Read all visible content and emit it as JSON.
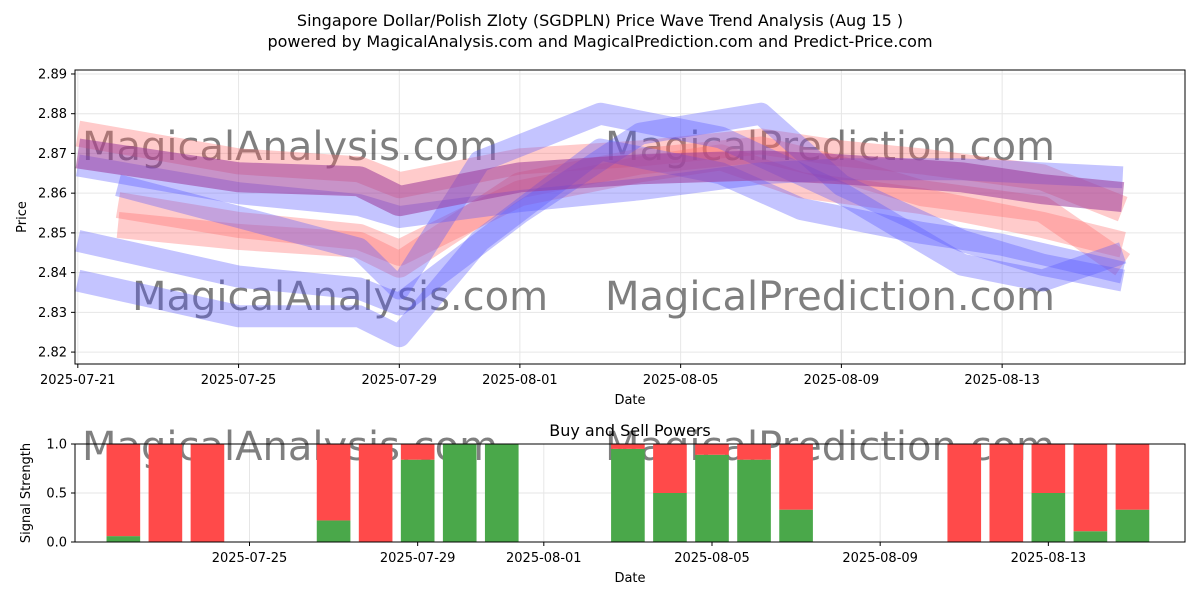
{
  "title_line1": "Singapore Dollar/Polish Zloty (SGDPLN) Price Wave Trend Analysis (Aug 15 )",
  "title_line2": "powered by MagicalAnalysis.com and MagicalPrediction.com and Predict-Price.com",
  "watermarks": {
    "top_left": "MagicalAnalysis.com",
    "top_right": "MagicalPrediction.com",
    "mid_left": "MagicalAnalysis.com",
    "mid_right": "MagicalPrediction.com",
    "bottom_left": "MagicalAnalysis.com",
    "bottom_right": "MagicalPrediction.com"
  },
  "colors": {
    "red_band": "#ff6b6b",
    "blue_band": "#5555ff",
    "purple_band": "#9b3a9b",
    "buy_bar": "#4aa84a",
    "sell_bar": "#ff4a4a"
  },
  "chart_data": [
    {
      "type": "area",
      "title": "",
      "xlabel": "Date",
      "ylabel": "Price",
      "x_ticks": [
        "2025-07-21",
        "2025-07-25",
        "2025-07-29",
        "2025-08-01",
        "2025-08-05",
        "2025-08-09",
        "2025-08-13"
      ],
      "y_ticks": [
        "2.82",
        "2.83",
        "2.84",
        "2.85",
        "2.86",
        "2.87",
        "2.88",
        "2.89"
      ],
      "ylim": [
        2.817,
        2.891
      ],
      "xlim": [
        "2025-07-20",
        "2025-08-17"
      ],
      "grid": true,
      "series": [
        {
          "color": "red",
          "x": [
            "2025-07-21",
            "2025-07-25",
            "2025-07-28",
            "2025-07-29",
            "2025-08-01",
            "2025-08-04",
            "2025-08-07",
            "2025-08-09",
            "2025-08-11",
            "2025-08-14",
            "2025-08-16"
          ],
          "y": [
            2.875,
            2.868,
            2.866,
            2.862,
            2.868,
            2.87,
            2.873,
            2.87,
            2.868,
            2.864,
            2.856
          ]
        },
        {
          "color": "red",
          "x": [
            "2025-07-22",
            "2025-07-25",
            "2025-07-28",
            "2025-07-29",
            "2025-08-01",
            "2025-08-04",
            "2025-08-07",
            "2025-08-09",
            "2025-08-11",
            "2025-08-14",
            "2025-08-16"
          ],
          "y": [
            2.852,
            2.849,
            2.847,
            2.842,
            2.862,
            2.868,
            2.871,
            2.866,
            2.86,
            2.856,
            2.842
          ]
        },
        {
          "color": "red",
          "x": [
            "2025-07-22",
            "2025-07-25",
            "2025-07-28",
            "2025-07-29",
            "2025-08-01",
            "2025-08-04",
            "2025-08-06",
            "2025-08-08",
            "2025-08-11",
            "2025-08-14",
            "2025-08-16"
          ],
          "y": [
            2.857,
            2.852,
            2.849,
            2.845,
            2.86,
            2.866,
            2.869,
            2.862,
            2.858,
            2.852,
            2.847
          ]
        },
        {
          "color": "blue",
          "x": [
            "2025-07-21",
            "2025-07-25",
            "2025-07-28",
            "2025-07-29",
            "2025-07-31",
            "2025-08-03",
            "2025-08-06",
            "2025-08-08",
            "2025-08-11",
            "2025-08-13",
            "2025-08-16"
          ],
          "y": [
            2.838,
            2.829,
            2.829,
            2.824,
            2.848,
            2.871,
            2.865,
            2.856,
            2.85,
            2.847,
            2.84
          ]
        },
        {
          "color": "blue",
          "x": [
            "2025-07-21",
            "2025-07-25",
            "2025-07-28",
            "2025-07-29",
            "2025-08-01",
            "2025-08-04",
            "2025-08-07",
            "2025-08-09",
            "2025-08-12",
            "2025-08-14",
            "2025-08-16"
          ],
          "y": [
            2.848,
            2.839,
            2.836,
            2.832,
            2.855,
            2.875,
            2.88,
            2.862,
            2.848,
            2.842,
            2.838
          ]
        },
        {
          "color": "blue",
          "x": [
            "2025-07-21",
            "2025-07-25",
            "2025-07-28",
            "2025-07-29",
            "2025-08-01",
            "2025-08-04",
            "2025-08-07",
            "2025-08-09",
            "2025-08-12",
            "2025-08-14",
            "2025-08-16"
          ],
          "y": [
            2.867,
            2.86,
            2.857,
            2.854,
            2.858,
            2.861,
            2.865,
            2.866,
            2.866,
            2.865,
            2.864
          ]
        },
        {
          "color": "blue",
          "x": [
            "2025-07-22",
            "2025-07-25",
            "2025-07-28",
            "2025-07-29",
            "2025-07-31",
            "2025-08-03",
            "2025-08-06",
            "2025-08-09",
            "2025-08-12",
            "2025-08-14",
            "2025-08-16"
          ],
          "y": [
            2.862,
            2.854,
            2.846,
            2.836,
            2.868,
            2.88,
            2.874,
            2.86,
            2.842,
            2.838,
            2.845
          ]
        },
        {
          "color": "purple",
          "x": [
            "2025-07-21",
            "2025-07-25",
            "2025-07-28",
            "2025-07-29",
            "2025-08-01",
            "2025-08-04",
            "2025-08-07",
            "2025-08-09",
            "2025-08-12",
            "2025-08-14",
            "2025-08-16"
          ],
          "y": [
            2.87,
            2.864,
            2.863,
            2.858,
            2.864,
            2.866,
            2.867,
            2.866,
            2.864,
            2.861,
            2.859
          ]
        }
      ]
    },
    {
      "type": "bar",
      "title": "Buy and Sell Powers",
      "xlabel": "Date",
      "ylabel": "Signal Strength",
      "x_ticks": [
        "2025-07-25",
        "2025-07-29",
        "2025-08-01",
        "2025-08-05",
        "2025-08-09",
        "2025-08-13"
      ],
      "y_ticks": [
        "0.0",
        "0.5",
        "1.0"
      ],
      "ylim": [
        0,
        1
      ],
      "grid": true,
      "categories": [
        "2025-07-22",
        "2025-07-23",
        "2025-07-24",
        "2025-07-27",
        "2025-07-28",
        "2025-07-29",
        "2025-07-30",
        "2025-07-31",
        "2025-08-03",
        "2025-08-04",
        "2025-08-05",
        "2025-08-06",
        "2025-08-07",
        "2025-08-11",
        "2025-08-12",
        "2025-08-13",
        "2025-08-14",
        "2025-08-15"
      ],
      "series": [
        {
          "name": "",
          "color": "green",
          "values": [
            0.06,
            0.0,
            0.0,
            0.22,
            0.0,
            0.84,
            1.0,
            1.0,
            0.95,
            0.5,
            0.89,
            0.84,
            0.33,
            0.0,
            0.0,
            0.5,
            0.11,
            0.33
          ]
        },
        {
          "name": "",
          "color": "red",
          "values": [
            0.94,
            1.0,
            1.0,
            0.78,
            1.0,
            0.16,
            0.0,
            0.0,
            0.05,
            0.5,
            0.11,
            0.16,
            0.67,
            1.0,
            1.0,
            0.5,
            0.89,
            0.67
          ]
        }
      ]
    }
  ]
}
